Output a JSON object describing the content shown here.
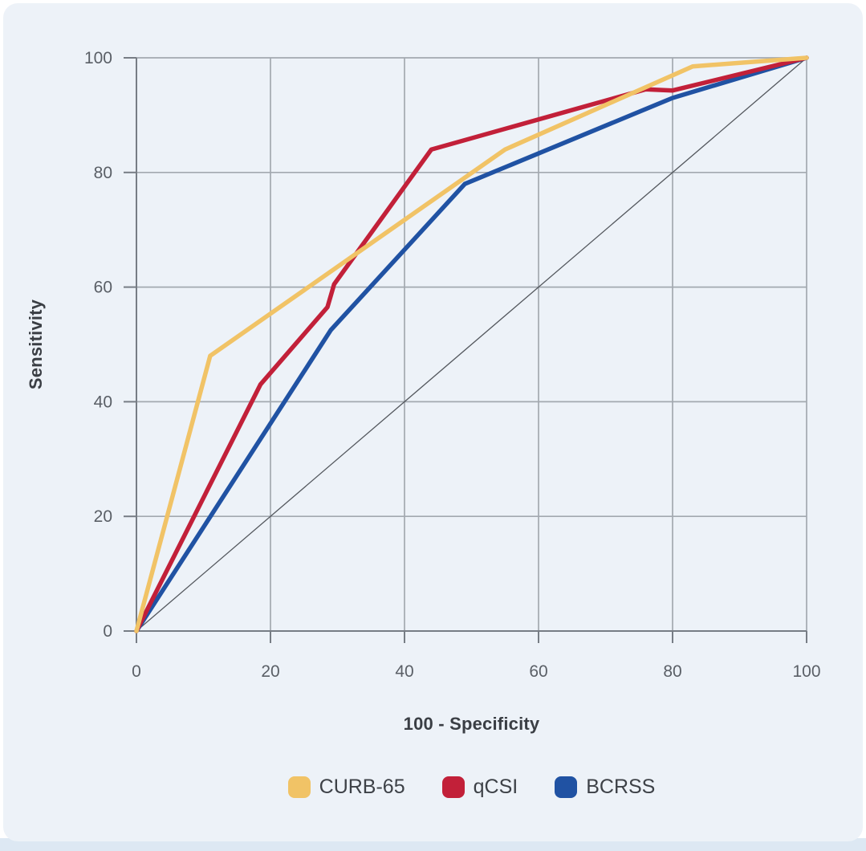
{
  "colors": {
    "page_background": "#ffffff",
    "panel_background": "#edf2f8",
    "bottom_strip": "#dde8f3",
    "gridline": "#a3a9b0",
    "axis_line": "#777d85",
    "tick_label": "#5a5f66",
    "axis_title": "#3a3e44",
    "legend_label": "#3d4147",
    "reference_line": "#53575d"
  },
  "chart_data": {
    "type": "line",
    "title": "",
    "xlabel": "100 - Specificity",
    "ylabel": "Sensitivity",
    "xlim": [
      0,
      100
    ],
    "ylim": [
      0,
      100
    ],
    "x_ticks": [
      0,
      20,
      40,
      60,
      80,
      100
    ],
    "y_ticks": [
      0,
      20,
      40,
      60,
      80,
      100
    ],
    "grid": true,
    "legend_position": "bottom",
    "series": [
      {
        "name": "CURB-65",
        "color": "#f1c366",
        "points": [
          [
            0,
            0
          ],
          [
            11,
            48
          ],
          [
            55,
            84
          ],
          [
            83,
            98.5
          ],
          [
            100,
            100
          ]
        ]
      },
      {
        "name": "qCSI",
        "color": "#c22039",
        "points": [
          [
            0,
            0
          ],
          [
            18.5,
            43
          ],
          [
            28.5,
            56.5
          ],
          [
            29.5,
            60.5
          ],
          [
            44,
            84
          ],
          [
            76,
            94.5
          ],
          [
            80,
            94.3
          ],
          [
            100,
            100
          ]
        ]
      },
      {
        "name": "BCRSS",
        "color": "#2052a3",
        "points": [
          [
            0,
            0
          ],
          [
            29,
            52.5
          ],
          [
            49,
            78
          ],
          [
            80,
            93
          ],
          [
            100,
            100
          ]
        ]
      }
    ],
    "reference_line": {
      "from": [
        0,
        0
      ],
      "to": [
        100,
        100
      ]
    }
  }
}
